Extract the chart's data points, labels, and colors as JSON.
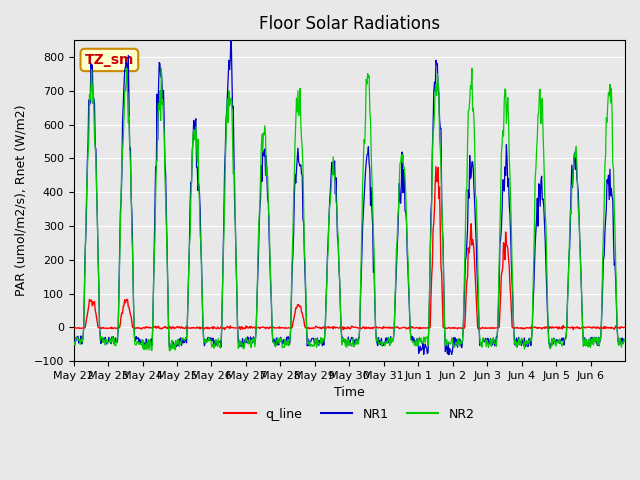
{
  "title": "Floor Solar Radiations",
  "ylabel": "PAR (umol/m2/s), Rnet (W/m2)",
  "xlabel": "Time",
  "ylim": [
    -100,
    850
  ],
  "yticks": [
    -100,
    0,
    100,
    200,
    300,
    400,
    500,
    600,
    700,
    800
  ],
  "legend_labels": [
    "q_line",
    "NR1",
    "NR2"
  ],
  "legend_colors": [
    "#ff0000",
    "#0000cc",
    "#00cc00"
  ],
  "annotation_text": "TZ_sm",
  "annotation_color": "#cc0000",
  "annotation_bg": "#ffffcc",
  "annotation_border": "#cc8800",
  "bg_color": "#e8e8e8",
  "axes_bg": "#e8e8e8",
  "grid_color": "#ffffff",
  "n_days": 16,
  "x_tick_labels": [
    "May 22",
    "May 23",
    "May 24",
    "May 25",
    "May 26",
    "May 27",
    "May 28",
    "May 29",
    "May 30",
    "May 31",
    "Jun 1",
    "Jun 2",
    "Jun 3",
    "Jun 4",
    "Jun 5",
    "Jun 6"
  ],
  "nr1_peaks": [
    780,
    770,
    780,
    575,
    790,
    520,
    530,
    460,
    510,
    430,
    790,
    440,
    475,
    420,
    505,
    450
  ],
  "nr2_peaks": [
    710,
    700,
    700,
    580,
    700,
    575,
    700,
    455,
    720,
    510,
    720,
    715,
    705,
    700,
    500,
    695
  ],
  "q_peaks": [
    80,
    80,
    0,
    0,
    0,
    0,
    65,
    0,
    0,
    0,
    430,
    275,
    260,
    0,
    0,
    0
  ],
  "nr1_neg": [
    -50,
    -50,
    -65,
    -55,
    -60,
    -55,
    -55,
    -55,
    -55,
    -50,
    -85,
    -60,
    -55,
    -60,
    -55,
    -55
  ],
  "nr2_neg": [
    -55,
    -55,
    -70,
    -60,
    -65,
    -60,
    -60,
    -60,
    -60,
    -55,
    -55,
    -60,
    -60,
    -65,
    -60,
    -60
  ]
}
